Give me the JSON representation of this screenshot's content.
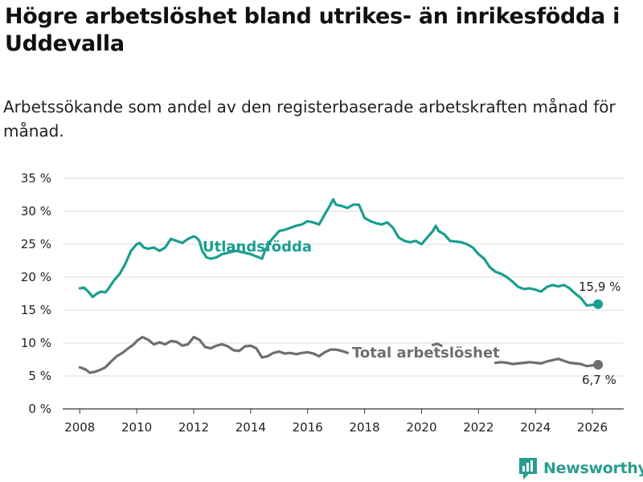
{
  "header": {
    "title": "Högre arbetslöshet bland utrikes- än inrikesfödda i Uddevalla",
    "subtitle": "Arbetssökande som andel av den registerbaserade arbetskraften månad för månad."
  },
  "brand": {
    "name": "Newsworthy",
    "icon": "newsworthy-logo-icon"
  },
  "colors": {
    "foreign": "#1a9e8f",
    "total": "#6e6e72",
    "grid": "#dddddd"
  },
  "chart_data": {
    "type": "line",
    "xlim": [
      2007.4,
      2027.1
    ],
    "ylim": [
      0,
      35
    ],
    "x_ticks": [
      2008,
      2010,
      2012,
      2014,
      2016,
      2018,
      2020,
      2022,
      2024,
      2026
    ],
    "x_tick_labels": [
      "2008",
      "2010",
      "2012",
      "2014",
      "2016",
      "2018",
      "2020",
      "2022",
      "2024",
      "2026"
    ],
    "y_ticks": [
      0,
      5,
      10,
      15,
      20,
      25,
      30,
      35
    ],
    "y_tick_labels": [
      "0 %",
      "5 %",
      "10 %",
      "15 %",
      "20 %",
      "25 %",
      "30 %",
      "35 %"
    ],
    "series": [
      {
        "name": "Utlandsfödda",
        "end_label": "15,9 %",
        "x": [
          2008.0,
          2008.15,
          2008.3,
          2008.45,
          2008.6,
          2008.75,
          2008.9,
          2009.0,
          2009.2,
          2009.4,
          2009.6,
          2009.8,
          2010.0,
          2010.1,
          2010.25,
          2010.4,
          2010.6,
          2010.8,
          2011.0,
          2011.2,
          2011.4,
          2011.6,
          2011.8,
          2012.0,
          2012.1,
          2012.2,
          2012.3,
          2012.45,
          2012.6,
          2012.8,
          2013.0,
          2013.5,
          2014.0,
          2014.4,
          2014.5,
          2014.7,
          2014.9,
          2015.0,
          2015.2,
          2015.4,
          2015.6,
          2015.8,
          2016.0,
          2016.2,
          2016.4,
          2016.6,
          2016.8,
          2016.9,
          2017.0,
          2017.2,
          2017.4,
          2017.6,
          2017.8,
          2018.0,
          2018.2,
          2018.4,
          2018.6,
          2018.8,
          2019.0,
          2019.2,
          2019.4,
          2019.6,
          2019.8,
          2020.0,
          2020.2,
          2020.4,
          2020.5,
          2020.6,
          2020.8,
          2021.0,
          2021.2,
          2021.4,
          2021.6,
          2021.8,
          2022.0,
          2022.2,
          2022.4,
          2022.6,
          2022.8,
          2023.0,
          2023.2,
          2023.4,
          2023.6,
          2023.8,
          2024.0,
          2024.2,
          2024.4,
          2024.6,
          2024.8,
          2025.0,
          2025.2,
          2025.4,
          2025.6,
          2025.8,
          2026.0,
          2026.2
        ],
        "y": [
          18.3,
          18.4,
          17.8,
          17.0,
          17.5,
          17.8,
          17.7,
          18.2,
          19.5,
          20.5,
          22.0,
          24.0,
          25.0,
          25.2,
          24.5,
          24.3,
          24.5,
          24.0,
          24.5,
          25.8,
          25.5,
          25.2,
          25.8,
          26.2,
          26.0,
          25.5,
          24.0,
          23.0,
          22.8,
          23.0,
          23.5,
          24.0,
          23.5,
          22.8,
          24.0,
          25.5,
          26.5,
          27.0,
          27.2,
          27.5,
          27.8,
          28.0,
          28.5,
          28.3,
          28.0,
          29.5,
          31.0,
          31.8,
          31.0,
          30.8,
          30.5,
          31.0,
          31.0,
          29.0,
          28.5,
          28.2,
          28.0,
          28.3,
          27.5,
          26.0,
          25.5,
          25.3,
          25.5,
          25.0,
          26.0,
          27.0,
          27.8,
          27.0,
          26.5,
          25.5,
          25.4,
          25.3,
          25.0,
          24.5,
          23.5,
          22.8,
          21.5,
          20.8,
          20.5,
          20.0,
          19.3,
          18.5,
          18.2,
          18.3,
          18.1,
          17.8,
          18.5,
          18.8,
          18.6,
          18.8,
          18.3,
          17.5,
          16.8,
          15.7,
          15.8,
          15.9
        ]
      },
      {
        "name": "Total arbetslöshet",
        "end_label": "6,7 %",
        "x": [
          2008.0,
          2008.2,
          2008.35,
          2008.5,
          2008.7,
          2008.9,
          2009.1,
          2009.3,
          2009.5,
          2009.7,
          2009.9,
          2010.0,
          2010.2,
          2010.4,
          2010.6,
          2010.8,
          2011.0,
          2011.2,
          2011.4,
          2011.6,
          2011.8,
          2012.0,
          2012.2,
          2012.4,
          2012.6,
          2012.8,
          2013.0,
          2013.2,
          2013.4,
          2013.6,
          2013.8,
          2014.0,
          2014.2,
          2014.4,
          2014.6,
          2014.8,
          2015.0,
          2015.2,
          2015.4,
          2015.6,
          2015.8,
          2016.0,
          2016.2,
          2016.4,
          2016.6,
          2016.8,
          2017.0,
          2017.2,
          2017.4,
          2020.4,
          2020.55,
          2020.7,
          2022.6,
          2022.8,
          2023.0,
          2023.2,
          2023.4,
          2023.6,
          2023.8,
          2024.0,
          2024.2,
          2024.4,
          2024.6,
          2024.8,
          2025.0,
          2025.2,
          2025.4,
          2025.6,
          2025.8,
          2026.0,
          2026.2
        ],
        "y": [
          6.3,
          6.0,
          5.5,
          5.6,
          5.9,
          6.3,
          7.2,
          8.0,
          8.5,
          9.2,
          9.8,
          10.3,
          10.9,
          10.5,
          9.8,
          10.1,
          9.8,
          10.3,
          10.2,
          9.6,
          9.8,
          10.9,
          10.5,
          9.4,
          9.2,
          9.6,
          9.8,
          9.5,
          8.9,
          8.8,
          9.5,
          9.6,
          9.2,
          7.8,
          8.0,
          8.5,
          8.7,
          8.4,
          8.5,
          8.3,
          8.5,
          8.6,
          8.4,
          8.0,
          8.6,
          9.0,
          9.0,
          8.8,
          8.5,
          9.7,
          9.9,
          9.6,
          7.0,
          7.1,
          7.0,
          6.8,
          6.9,
          7.0,
          7.1,
          7.0,
          6.9,
          7.2,
          7.4,
          7.6,
          7.3,
          7.0,
          6.9,
          6.8,
          6.5,
          6.6,
          6.7
        ]
      }
    ]
  }
}
